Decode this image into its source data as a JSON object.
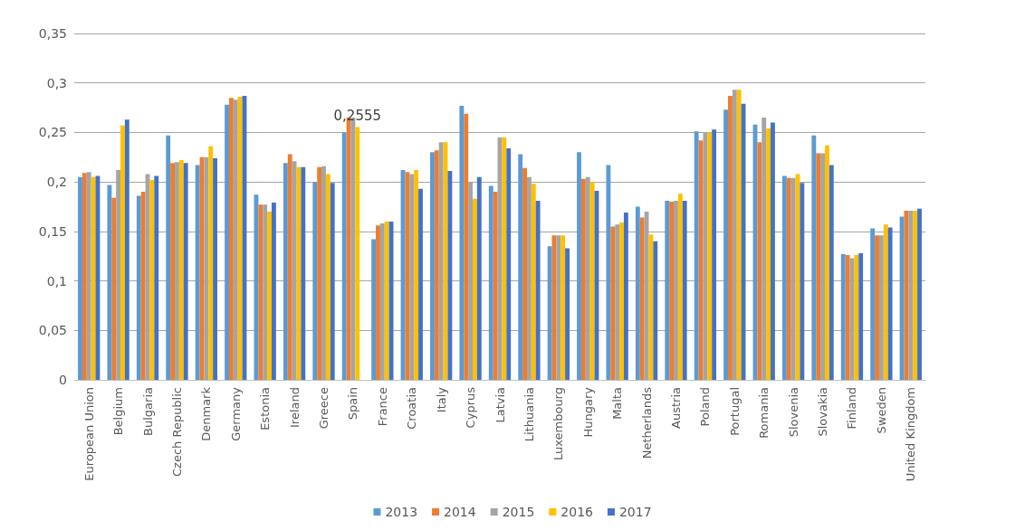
{
  "chart_data": {
    "type": "bar",
    "categories": [
      "European Union",
      "Belgium",
      "Bulgaria",
      "Czech Republic",
      "Denmark",
      "Germany",
      "Estonia",
      "Ireland",
      "Greece",
      "Spain",
      "France",
      "Croatia",
      "Italy",
      "Cyprus",
      "Latvia",
      "Lithuania",
      "Luxembourg",
      "Hungary",
      "Malta",
      "Netherlands",
      "Austria",
      "Poland",
      "Portugal",
      "Romania",
      "Slovenia",
      "Slovakia",
      "Finland",
      "Sweden",
      "United Kingdom"
    ],
    "series": [
      {
        "name": "2013",
        "color": "#5b9bd5",
        "values": [
          0.205,
          0.197,
          0.186,
          0.247,
          0.217,
          0.278,
          0.187,
          0.219,
          0.2,
          0.25,
          0.142,
          0.212,
          0.23,
          0.277,
          0.196,
          0.228,
          0.135,
          0.23,
          0.217,
          0.175,
          0.181,
          0.251,
          0.273,
          0.258,
          0.206,
          0.247,
          0.127,
          0.153,
          0.165
        ]
      },
      {
        "name": "2014",
        "color": "#ed7d31",
        "values": [
          0.209,
          0.184,
          0.19,
          0.219,
          0.225,
          0.285,
          0.177,
          0.228,
          0.215,
          0.265,
          0.156,
          0.21,
          0.232,
          0.269,
          0.19,
          0.214,
          0.146,
          0.203,
          0.155,
          0.164,
          0.18,
          0.242,
          0.287,
          0.24,
          0.204,
          0.229,
          0.126,
          0.146,
          0.171
        ]
      },
      {
        "name": "2015",
        "color": "#a5a5a5",
        "values": [
          0.21,
          0.212,
          0.208,
          0.22,
          0.225,
          0.283,
          0.177,
          0.221,
          0.216,
          0.265,
          0.158,
          0.208,
          0.24,
          0.2,
          0.245,
          0.205,
          0.146,
          0.205,
          0.157,
          0.17,
          0.181,
          0.25,
          0.293,
          0.265,
          0.204,
          0.229,
          0.123,
          0.146,
          0.171
        ]
      },
      {
        "name": "2016",
        "color": "#ffc000",
        "values": [
          0.205,
          0.257,
          0.202,
          0.222,
          0.236,
          0.286,
          0.17,
          0.215,
          0.208,
          0.2555,
          0.16,
          0.212,
          0.24,
          0.183,
          0.245,
          0.198,
          0.146,
          0.2,
          0.159,
          0.147,
          0.188,
          0.25,
          0.293,
          0.254,
          0.208,
          0.237,
          0.126,
          0.157,
          0.171
        ],
        "value_labels": [
          null,
          null,
          null,
          null,
          null,
          null,
          null,
          null,
          null,
          "0,2555",
          null,
          null,
          null,
          null,
          null,
          null,
          null,
          null,
          null,
          null,
          null,
          null,
          null,
          null,
          null,
          null,
          null,
          null,
          null
        ]
      },
      {
        "name": "2017",
        "color": "#4472c4",
        "values": [
          0.206,
          0.263,
          0.206,
          0.219,
          0.224,
          0.287,
          0.179,
          0.215,
          0.199,
          null,
          0.16,
          0.193,
          0.211,
          0.205,
          0.234,
          0.181,
          0.133,
          0.191,
          0.169,
          0.14,
          0.181,
          0.253,
          0.279,
          0.26,
          0.199,
          0.217,
          0.128,
          0.154,
          0.173
        ]
      }
    ],
    "ylim": [
      0,
      0.35
    ],
    "yticks": [
      {
        "value": 0,
        "label": "0"
      },
      {
        "value": 0.05,
        "label": "0,05"
      },
      {
        "value": 0.1,
        "label": "0,1"
      },
      {
        "value": 0.15,
        "label": "0,15"
      },
      {
        "value": 0.2,
        "label": "0,2"
      },
      {
        "value": 0.25,
        "label": "0,25"
      },
      {
        "value": 0.3,
        "label": "0,3"
      },
      {
        "value": 0.35,
        "label": "0,35"
      }
    ],
    "grid": "y",
    "legend": "bottom"
  }
}
